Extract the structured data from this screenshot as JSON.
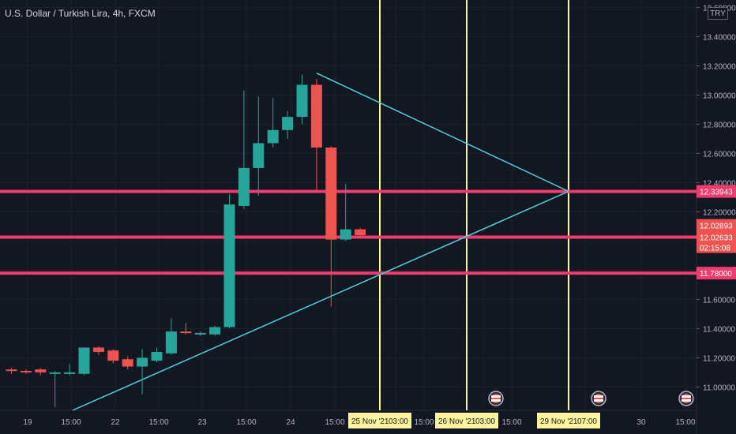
{
  "header": {
    "title": "U.S. Dollar / Turkish Lira, 4h, FXCM",
    "currency": "TRY"
  },
  "chart_data": {
    "type": "candlestick",
    "yaxis_ticks": [
      "13.60000",
      "13.40000",
      "13.20000",
      "13.00000",
      "12.80000",
      "12.60000",
      "12.40000",
      "12.20000",
      "12.00000",
      "11.80000",
      "11.60000",
      "11.40000",
      "11.20000",
      "11.00000"
    ],
    "ylim": [
      10.84,
      13.64
    ],
    "xaxis_ticks": [
      "19",
      "15:00",
      "22",
      "15:00",
      "23",
      "15:00",
      "24",
      "15:00",
      "03:00",
      "15:00",
      "03:00",
      "15:00",
      "07:00",
      "30",
      "15:00"
    ],
    "candles": [
      {
        "o": 11.12,
        "h": 11.13,
        "l": 11.09,
        "c": 11.11
      },
      {
        "o": 11.11,
        "h": 11.12,
        "l": 11.09,
        "c": 11.1
      },
      {
        "o": 11.12,
        "h": 11.13,
        "l": 11.08,
        "c": 11.1
      },
      {
        "o": 11.09,
        "h": 11.11,
        "l": 10.86,
        "c": 11.1
      },
      {
        "o": 11.09,
        "h": 11.16,
        "l": 11.08,
        "c": 11.1
      },
      {
        "o": 11.09,
        "h": 11.26,
        "l": 11.08,
        "c": 11.27
      },
      {
        "o": 11.27,
        "h": 11.28,
        "l": 11.22,
        "c": 11.24
      },
      {
        "o": 11.25,
        "h": 11.26,
        "l": 11.16,
        "c": 11.18
      },
      {
        "o": 11.19,
        "h": 11.21,
        "l": 11.12,
        "c": 11.14
      },
      {
        "o": 11.14,
        "h": 11.26,
        "l": 10.95,
        "c": 11.2
      },
      {
        "o": 11.18,
        "h": 11.27,
        "l": 11.17,
        "c": 11.24
      },
      {
        "o": 11.23,
        "h": 11.47,
        "l": 11.22,
        "c": 11.38
      },
      {
        "o": 11.38,
        "h": 11.44,
        "l": 11.36,
        "c": 11.37
      },
      {
        "o": 11.36,
        "h": 11.38,
        "l": 11.35,
        "c": 11.37
      },
      {
        "o": 11.36,
        "h": 11.42,
        "l": 11.35,
        "c": 11.41
      },
      {
        "o": 11.41,
        "h": 12.32,
        "l": 11.4,
        "c": 12.25
      },
      {
        "o": 12.24,
        "h": 13.03,
        "l": 12.22,
        "c": 12.5
      },
      {
        "o": 12.5,
        "h": 12.99,
        "l": 12.31,
        "c": 12.67
      },
      {
        "o": 12.67,
        "h": 12.98,
        "l": 12.64,
        "c": 12.76
      },
      {
        "o": 12.76,
        "h": 12.89,
        "l": 12.7,
        "c": 12.85
      },
      {
        "o": 12.85,
        "h": 13.14,
        "l": 12.8,
        "c": 13.07
      },
      {
        "o": 13.07,
        "h": 13.11,
        "l": 12.33,
        "c": 12.64
      },
      {
        "o": 12.64,
        "h": 12.65,
        "l": 11.55,
        "c": 12.01
      },
      {
        "o": 12.01,
        "h": 12.39,
        "l": 12.0,
        "c": 12.08
      },
      {
        "o": 12.08,
        "h": 12.09,
        "l": 12.02,
        "c": 12.04
      }
    ],
    "horizontal_levels": [
      {
        "value": 12.33943,
        "label": "12.33943"
      },
      {
        "value": 12.02633,
        "label": "12.02633"
      },
      {
        "value": 11.78,
        "label": "11.78000"
      }
    ],
    "price_tags": [
      {
        "value": 12.08,
        "label": "12.02893"
      },
      {
        "value": 12.02633,
        "label": "12.02633",
        "sub": "02:15:08"
      }
    ],
    "vertical_markers": [
      {
        "label": "25 Nov '21",
        "time": "03:00"
      },
      {
        "label": "26 Nov '21",
        "time": "03:00"
      },
      {
        "label": "29 Nov '21",
        "time": "07:00"
      }
    ],
    "trendlines": [
      {
        "from_candle": 21,
        "from_value": 13.15,
        "to_marker": 2,
        "to_value": 12.34
      },
      {
        "from_candle": 5,
        "from_value": 10.84,
        "to_marker": 2,
        "to_value": 12.34
      }
    ],
    "colors": {
      "up": "#26a69a",
      "down": "#ef5350",
      "hline": "#f23a6e",
      "vline": "#fff59d",
      "trend": "#4dd0e1",
      "grid": "#1e222d",
      "text": "#b2b5be",
      "bg": "#131722"
    }
  }
}
